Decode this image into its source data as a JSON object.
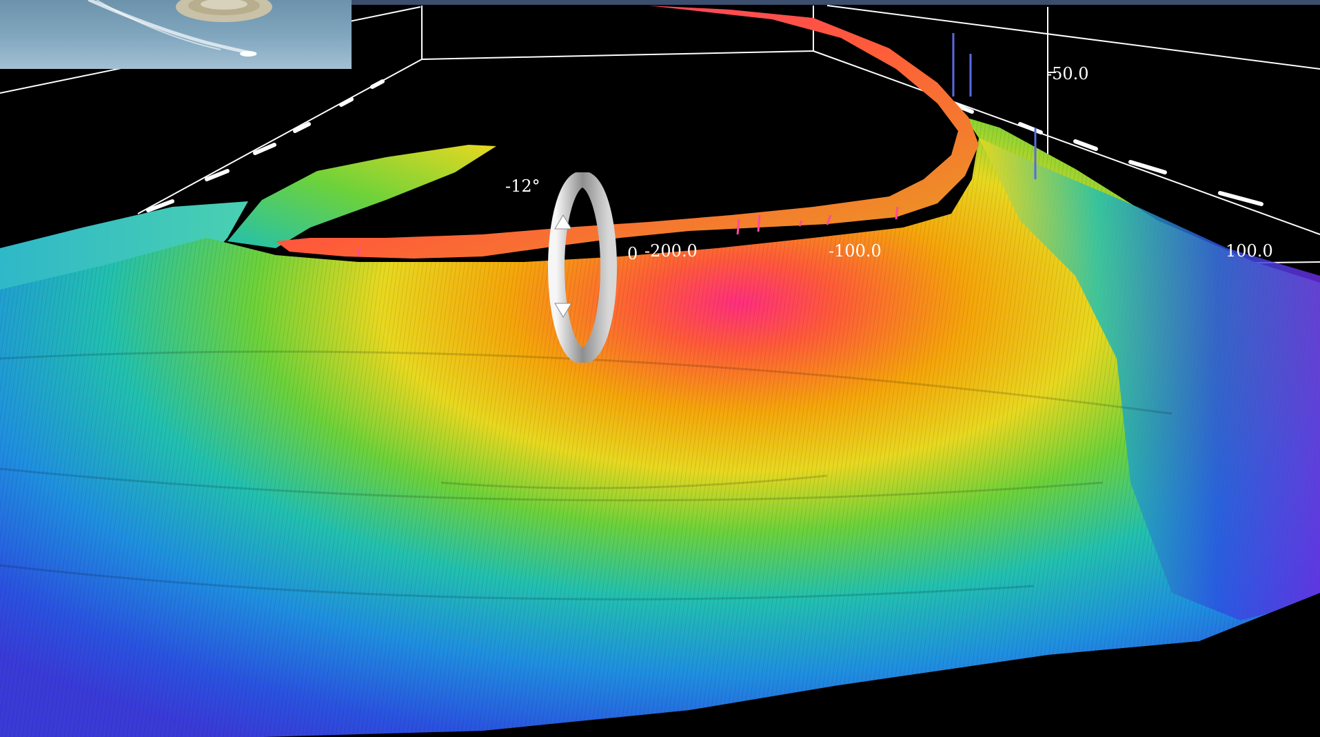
{
  "viewer": {
    "background": "#000000",
    "accent_bar": "#3b4e6e",
    "grid_color": "#ffffff",
    "axis_labels": {
      "x_tick_1": "-200.0",
      "x_tick_2": "-100.0",
      "x_tick_3": "100.0",
      "z_tick": "-50.0",
      "origin_tick": "0"
    },
    "compass": {
      "angle_label": "-12°",
      "icon": "rotation-ring-icon"
    },
    "inset": {
      "description_icon": "aerial-photo-icon"
    },
    "colormap": [
      "#ff2e7e",
      "#ff5a3a",
      "#f5a60a",
      "#e8d820",
      "#6dd23a",
      "#22c0b0",
      "#1f8fe0",
      "#2a52e0",
      "#6a2ae0"
    ]
  }
}
